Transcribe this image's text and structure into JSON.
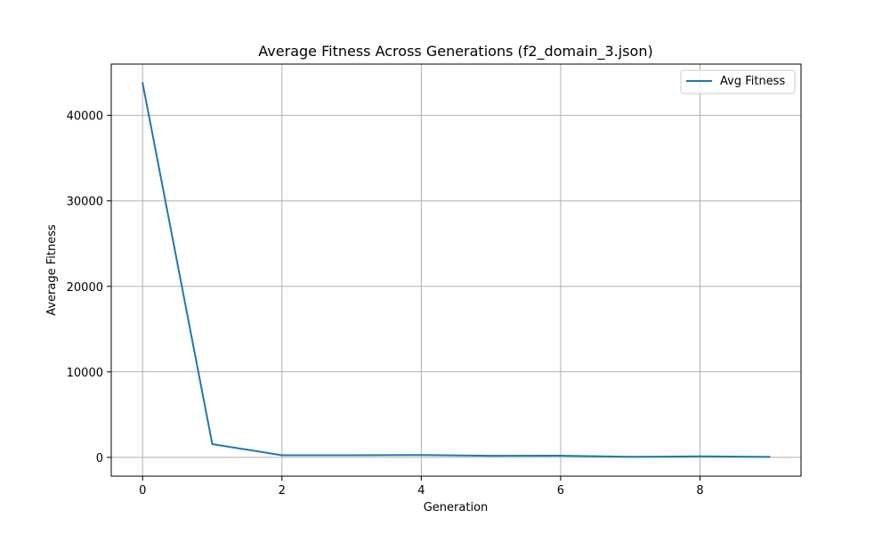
{
  "chart_data": {
    "type": "line",
    "title": "Average Fitness Across Generations (f2_domain_3.json)",
    "xlabel": "Generation",
    "ylabel": "Average Fitness",
    "xlim": [
      -0.45,
      9.45
    ],
    "ylim": [
      -2200,
      46000
    ],
    "xticks": [
      0,
      2,
      4,
      6,
      8
    ],
    "yticks": [
      0,
      10000,
      20000,
      30000,
      40000
    ],
    "grid": true,
    "legend_position": "top-right",
    "series": [
      {
        "name": "Avg Fitness",
        "color": "#1f77b4",
        "x": [
          0,
          1,
          2,
          3,
          4,
          5,
          6,
          7,
          8,
          9
        ],
        "values": [
          43800,
          1550,
          250,
          240,
          270,
          180,
          190,
          60,
          110,
          50
        ]
      }
    ]
  }
}
